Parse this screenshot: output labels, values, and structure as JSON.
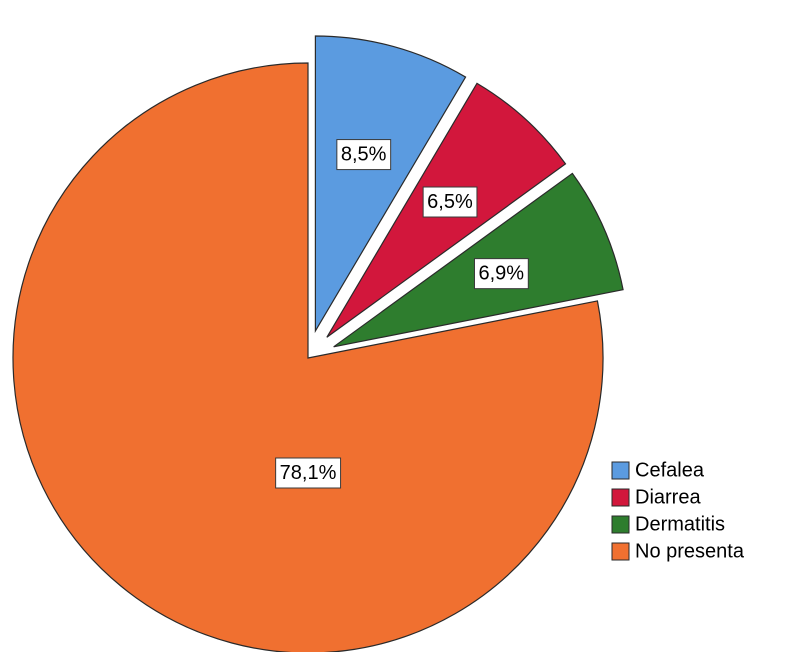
{
  "chart_data": {
    "type": "pie",
    "slices": [
      {
        "label": "Cefalea",
        "value": 8.5,
        "value_label": "8,5%",
        "color": "#5b9be0",
        "exploded": true
      },
      {
        "label": "Diarrea",
        "value": 6.5,
        "value_label": "6,5%",
        "color": "#d2173c",
        "exploded": true
      },
      {
        "label": "Dermatitis",
        "value": 6.9,
        "value_label": "6,9%",
        "color": "#2e7d2e",
        "exploded": true
      },
      {
        "label": "No presenta",
        "value": 78.1,
        "value_label": "78,1%",
        "color": "#f07030",
        "exploded": false
      }
    ],
    "legend_position": "bottom-right",
    "start_angle": "top",
    "direction": "clockwise"
  }
}
